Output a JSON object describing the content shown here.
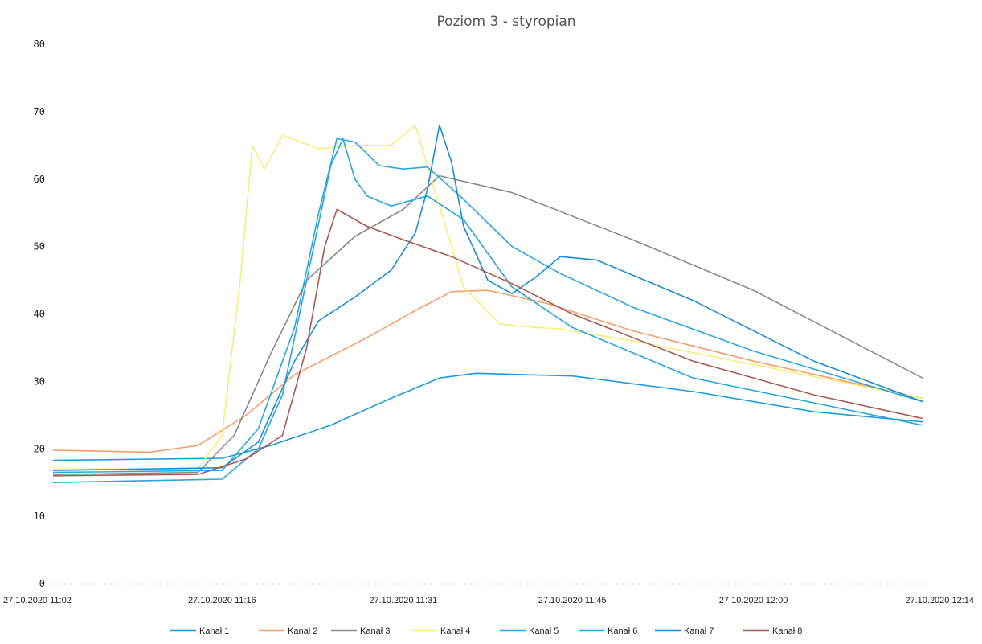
{
  "chart_data": {
    "type": "line",
    "title": "Poziom 3 - styropian",
    "xlabel": "",
    "ylabel": "",
    "ylim": [
      0,
      80
    ],
    "xlim": [
      "27.10.2020 11:02",
      "27.10.2020 12:14"
    ],
    "yticks": [
      "0",
      "10",
      "20",
      "30",
      "40",
      "50",
      "60",
      "70",
      "80"
    ],
    "xticks": [
      "27.10.2020 11:02",
      "27.10.2020 11:16",
      "27.10.2020 11:31",
      "27.10.2020 11:45",
      "27.10.2020 12:00",
      "27.10.2020 12:14"
    ],
    "grid": false,
    "legend_position": "bottom",
    "series": [
      {
        "name": "Kanał 1",
        "color": "#1f9bd7",
        "points": [
          [
            "11:02",
            18.3
          ],
          [
            "11:16",
            18.6
          ],
          [
            "11:20",
            20.5
          ],
          [
            "11:25",
            23.5
          ],
          [
            "11:30",
            27.5
          ],
          [
            "11:34",
            30.5
          ],
          [
            "11:37",
            31.2
          ],
          [
            "11:45",
            30.8
          ],
          [
            "11:55",
            28.5
          ],
          [
            "12:05",
            25.5
          ],
          [
            "12:14",
            24.0
          ]
        ]
      },
      {
        "name": "Kanał 2",
        "color": "#f4a06b",
        "points": [
          [
            "11:02",
            19.8
          ],
          [
            "11:10",
            19.5
          ],
          [
            "11:14",
            20.5
          ],
          [
            "11:18",
            25.0
          ],
          [
            "11:22",
            31.0
          ],
          [
            "11:28",
            36.5
          ],
          [
            "11:32",
            40.5
          ],
          [
            "11:35",
            43.3
          ],
          [
            "11:38",
            43.5
          ],
          [
            "11:43",
            41.5
          ],
          [
            "11:50",
            37.5
          ],
          [
            "12:00",
            33.0
          ],
          [
            "12:14",
            27.5
          ]
        ]
      },
      {
        "name": "Kanał 3",
        "color": "#8a8a8a",
        "points": [
          [
            "11:02",
            16.2
          ],
          [
            "11:14",
            16.5
          ],
          [
            "11:17",
            22.0
          ],
          [
            "11:20",
            34.0
          ],
          [
            "11:23",
            45.0
          ],
          [
            "11:27",
            51.5
          ],
          [
            "11:31",
            55.5
          ],
          [
            "11:34",
            60.5
          ],
          [
            "11:40",
            58.0
          ],
          [
            "11:50",
            51.0
          ],
          [
            "12:00",
            43.5
          ],
          [
            "12:14",
            30.5
          ]
        ]
      },
      {
        "name": "Kanał 4",
        "color": "#f6ee7c",
        "points": [
          [
            "11:02",
            17.0
          ],
          [
            "11:14",
            17.0
          ],
          [
            "11:16",
            22.0
          ],
          [
            "11:17.5",
            45.0
          ],
          [
            "11:18.5",
            65.0
          ],
          [
            "11:19.5",
            61.5
          ],
          [
            "11:21",
            66.5
          ],
          [
            "11:24",
            64.5
          ],
          [
            "11:27",
            65.0
          ],
          [
            "11:30",
            65.0
          ],
          [
            "11:32",
            68.0
          ],
          [
            "11:34",
            56.0
          ],
          [
            "11:36",
            44.0
          ],
          [
            "11:39",
            38.5
          ],
          [
            "11:42",
            38.0
          ],
          [
            "11:44",
            37.8
          ],
          [
            "11:50",
            36.0
          ],
          [
            "12:00",
            32.5
          ],
          [
            "12:14",
            27.5
          ]
        ]
      },
      {
        "name": "Kanał 5",
        "color": "#2ba8e0",
        "points": [
          [
            "11:02",
            16.5
          ],
          [
            "11:16",
            16.8
          ],
          [
            "11:19",
            23.0
          ],
          [
            "11:22",
            38.0
          ],
          [
            "11:24",
            55.0
          ],
          [
            "11:25.5",
            66.0
          ],
          [
            "11:27",
            65.5
          ],
          [
            "11:29",
            62.0
          ],
          [
            "11:31",
            61.5
          ],
          [
            "11:33",
            61.8
          ],
          [
            "11:36",
            57.0
          ],
          [
            "11:40",
            50.0
          ],
          [
            "11:44",
            46.0
          ],
          [
            "11:50",
            41.0
          ],
          [
            "12:00",
            34.5
          ],
          [
            "12:14",
            27.0
          ]
        ]
      },
      {
        "name": "Kanał 6",
        "color": "#2aa6d8",
        "points": [
          [
            "11:02",
            15.0
          ],
          [
            "11:16",
            15.5
          ],
          [
            "11:19",
            20.0
          ],
          [
            "11:21",
            28.0
          ],
          [
            "11:23",
            45.0
          ],
          [
            "11:25",
            62.0
          ],
          [
            "11:26",
            66.0
          ],
          [
            "11:27",
            60.0
          ],
          [
            "11:28",
            57.5
          ],
          [
            "11:30",
            56.0
          ],
          [
            "11:33",
            57.5
          ],
          [
            "11:36",
            54.0
          ],
          [
            "11:40",
            44.0
          ],
          [
            "11:45",
            38.0
          ],
          [
            "11:55",
            30.5
          ],
          [
            "12:14",
            23.5
          ]
        ]
      },
      {
        "name": "Kanał 7",
        "color": "#1a8fd0",
        "points": [
          [
            "11:02",
            16.8
          ],
          [
            "11:16",
            17.2
          ],
          [
            "11:19",
            21.0
          ],
          [
            "11:22",
            33.0
          ],
          [
            "11:24",
            39.0
          ],
          [
            "11:27",
            42.5
          ],
          [
            "11:30",
            46.5
          ],
          [
            "11:32",
            52.0
          ],
          [
            "11:33",
            58.5
          ],
          [
            "11:34",
            68.0
          ],
          [
            "11:35",
            62.5
          ],
          [
            "11:36",
            53.0
          ],
          [
            "11:38",
            45.0
          ],
          [
            "11:40",
            43.0
          ],
          [
            "11:42",
            45.5
          ],
          [
            "11:44",
            48.5
          ],
          [
            "11:47",
            48.0
          ],
          [
            "11:55",
            42.0
          ],
          [
            "12:05",
            33.0
          ],
          [
            "12:14",
            27.0
          ]
        ]
      },
      {
        "name": "Kanał 8",
        "color": "#a85b50",
        "points": [
          [
            "11:02",
            16.0
          ],
          [
            "11:14",
            16.2
          ],
          [
            "11:18",
            18.5
          ],
          [
            "11:21",
            22.0
          ],
          [
            "11:23",
            35.0
          ],
          [
            "11:24.5",
            50.0
          ],
          [
            "11:25.5",
            55.5
          ],
          [
            "11:28",
            53.0
          ],
          [
            "11:31",
            51.0
          ],
          [
            "11:35",
            48.5
          ],
          [
            "11:40",
            44.5
          ],
          [
            "11:45",
            40.0
          ],
          [
            "11:55",
            33.0
          ],
          [
            "12:05",
            28.0
          ],
          [
            "12:14",
            24.5
          ]
        ]
      }
    ]
  }
}
